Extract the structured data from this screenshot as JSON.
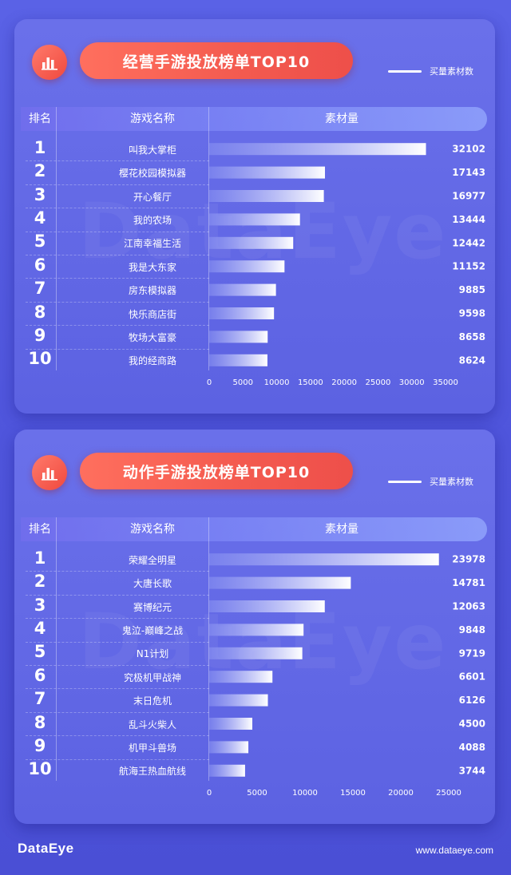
{
  "legend_label": "买量素材数",
  "header": {
    "rank": "排名",
    "name": "游戏名称",
    "metric": "素材量"
  },
  "footer": {
    "logo": "DataEye",
    "url": "www.dataeye.com"
  },
  "watermark": "DataEye",
  "panels": [
    {
      "title": "经营手游投放榜单TOP10",
      "ranks": [
        "1",
        "2",
        "3",
        "4",
        "5",
        "6",
        "7",
        "8",
        "9",
        "10"
      ],
      "games": [
        "叫我大掌柜",
        "樱花校园模拟器",
        "开心餐厅",
        "我的农场",
        "江南幸福生活",
        "我是大东家",
        "房东模拟器",
        "快乐商店街",
        "牧场大富豪",
        "我的经商路"
      ],
      "value_labels": [
        "32102",
        "17143",
        "16977",
        "13444",
        "12442",
        "11152",
        "9885",
        "9598",
        "8658",
        "8624"
      ],
      "tick_labels": [
        "0",
        "5000",
        "10000",
        "15000",
        "20000",
        "25000",
        "30000",
        "35000"
      ]
    },
    {
      "title": "动作手游投放榜单TOP10",
      "ranks": [
        "1",
        "2",
        "3",
        "4",
        "5",
        "6",
        "7",
        "8",
        "9",
        "10"
      ],
      "games": [
        "荣耀全明星",
        "大唐长歌",
        "赛博纪元",
        "鬼泣-巅峰之战",
        "N1计划",
        "究极机甲战神",
        "末日危机",
        "乱斗火柴人",
        "机甲斗兽场",
        "航海王热血航线"
      ],
      "value_labels": [
        "23978",
        "14781",
        "12063",
        "9848",
        "9719",
        "6601",
        "6126",
        "4500",
        "4088",
        "3744"
      ],
      "tick_labels": [
        "0",
        "5000",
        "10000",
        "15000",
        "20000",
        "25000"
      ]
    }
  ],
  "chart_data": [
    {
      "type": "bar",
      "title": "经营手游投放榜单TOP10",
      "orientation": "horizontal",
      "categories": [
        "叫我大掌柜",
        "樱花校园模拟器",
        "开心餐厅",
        "我的农场",
        "江南幸福生活",
        "我是大东家",
        "房东模拟器",
        "快乐商店街",
        "牧场大富豪",
        "我的经商路"
      ],
      "series": [
        {
          "name": "买量素材数",
          "values": [
            32102,
            17143,
            16977,
            13444,
            12442,
            11152,
            9885,
            9598,
            8658,
            8624
          ]
        }
      ],
      "xlabel": "",
      "ylabel": "",
      "xlim": [
        0,
        35000
      ],
      "ticks": [
        0,
        5000,
        10000,
        15000,
        20000,
        25000,
        30000,
        35000
      ],
      "legend": "top-right",
      "grid": false
    },
    {
      "type": "bar",
      "title": "动作手游投放榜单TOP10",
      "orientation": "horizontal",
      "categories": [
        "荣耀全明星",
        "大唐长歌",
        "赛博纪元",
        "鬼泣-巅峰之战",
        "N1计划",
        "究极机甲战神",
        "末日危机",
        "乱斗火柴人",
        "机甲斗兽场",
        "航海王热血航线"
      ],
      "series": [
        {
          "name": "买量素材数",
          "values": [
            23978,
            14781,
            12063,
            9848,
            9719,
            6601,
            6126,
            4500,
            4088,
            3744
          ]
        }
      ],
      "xlabel": "",
      "ylabel": "",
      "xlim": [
        0,
        25000
      ],
      "ticks": [
        0,
        5000,
        10000,
        15000,
        20000,
        25000
      ],
      "legend": "top-right",
      "grid": false
    }
  ],
  "colors": {
    "accent": "#f35a4f",
    "background": "#4f55dc",
    "bar_start": "#ffffff",
    "bar_end": "#8a93f2"
  }
}
